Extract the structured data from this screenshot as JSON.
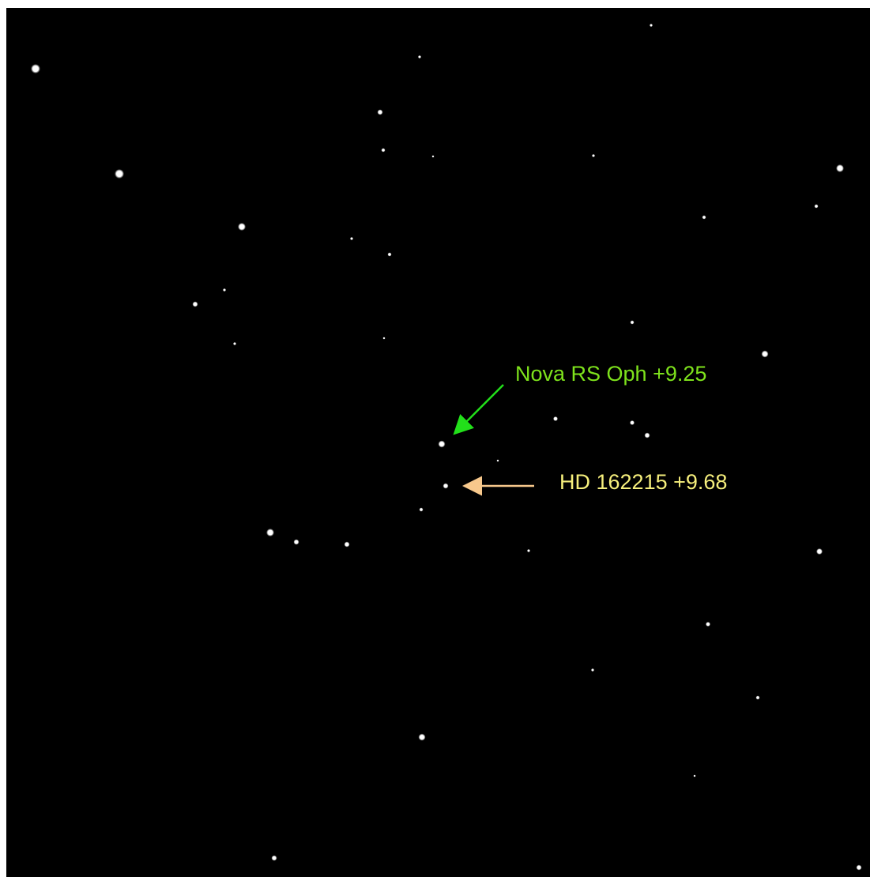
{
  "annotations": [
    {
      "label": "Nova RS Oph +9.25"
    },
    {
      "label": "HD 162215 +9.68"
    }
  ]
}
